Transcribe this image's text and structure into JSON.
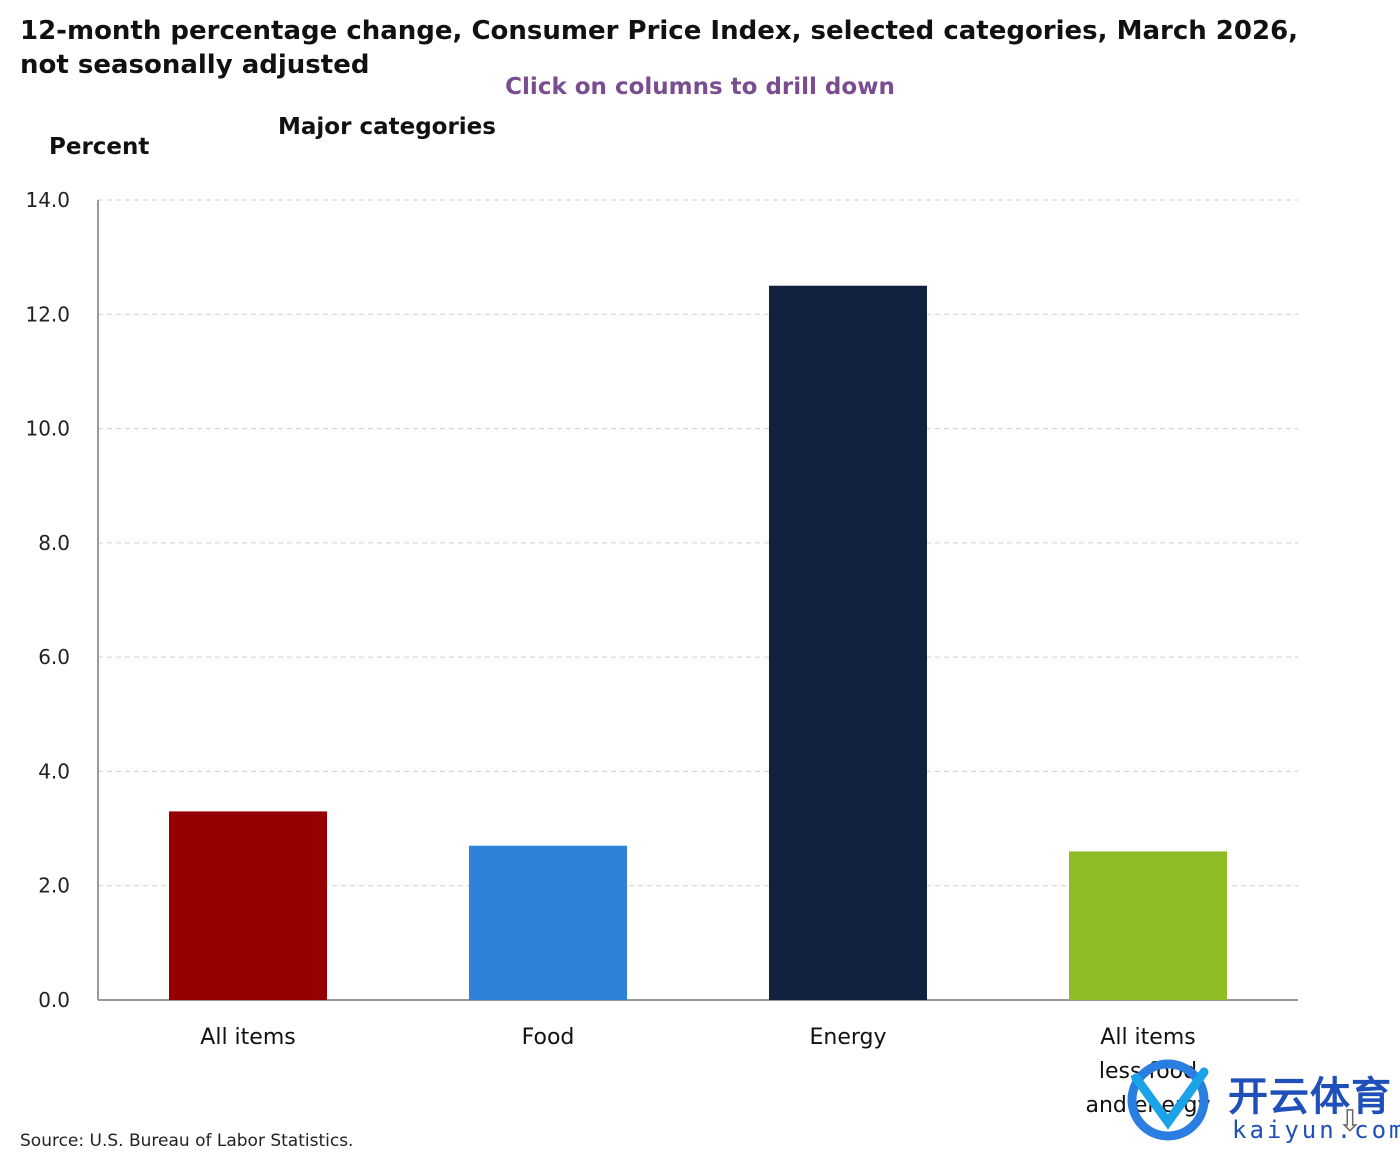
{
  "title": "12-month percentage change, Consumer Price Index, selected categories, March 2026, not seasonally adjusted",
  "hint": "Click on columns to drill down",
  "source": "Source: U.S. Bureau of Labor Statistics.",
  "watermark": {
    "cn": "开云体育",
    "en": "kaiyun.com"
  },
  "colors": {
    "grid": "#cfcfcf",
    "axis": "#999999"
  },
  "chart_data": {
    "type": "bar",
    "title": "12-month percentage change, Consumer Price Index, selected categories, March 2026, not seasonally adjusted",
    "subtitle": "Major categories",
    "ylabel": "Percent",
    "xlabel": "",
    "ylim": [
      0,
      14
    ],
    "yticks": [
      "0.0",
      "2.0",
      "4.0",
      "6.0",
      "8.0",
      "10.0",
      "12.0",
      "14.0"
    ],
    "grid": true,
    "categories": [
      [
        "All items"
      ],
      [
        "Food"
      ],
      [
        "Energy"
      ],
      [
        "All items",
        "less food",
        "and energy"
      ]
    ],
    "values": [
      3.3,
      2.7,
      12.5,
      2.6
    ],
    "colors": [
      "#960000",
      "#2e82d8",
      "#11213f",
      "#8fbc24"
    ]
  }
}
